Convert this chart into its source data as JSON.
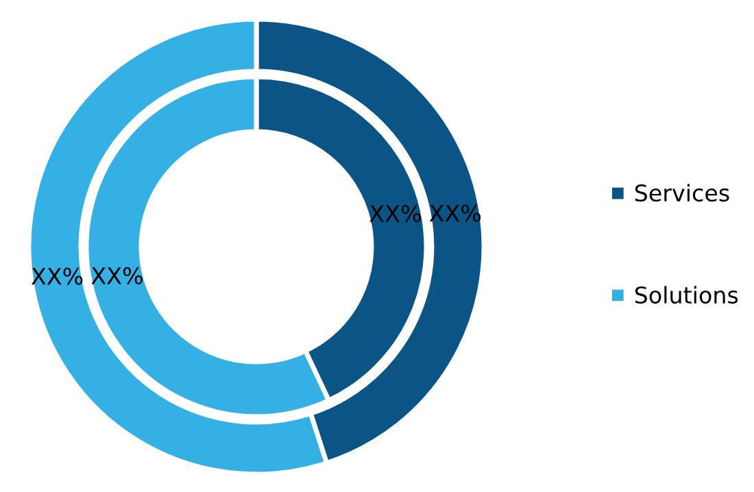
{
  "chart_data": {
    "type": "donut",
    "categories": [
      "Services",
      "Solutions"
    ],
    "colors": [
      "#0a5585",
      "#35b0e4"
    ],
    "series": [
      {
        "values": [
          43,
          57
        ],
        "value_labels": [
          "XX%",
          "XX%"
        ]
      },
      {
        "values": [
          45,
          55
        ],
        "value_labels": [
          "XX%",
          "XX%"
        ]
      }
    ],
    "legend": "right"
  }
}
